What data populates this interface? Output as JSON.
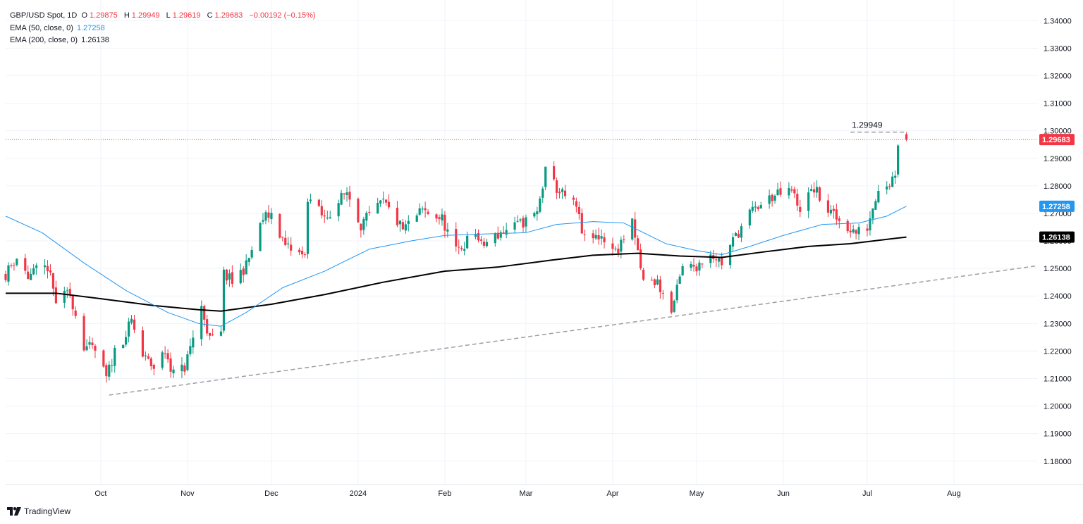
{
  "legend": {
    "symbol": "GBP/USD Spot, 1D",
    "open_label": "O",
    "open": "1.29875",
    "high_label": "H",
    "high": "1.29949",
    "low_label": "L",
    "low": "1.29619",
    "close_label": "C",
    "close": "1.29683",
    "change": "−0.00192 (−0.15%)",
    "ema50_label": "EMA (50, close, 0)",
    "ema50_value": "1.27258",
    "ema200_label": "EMA (200, close, 0)",
    "ema200_value": "1.26138"
  },
  "brand": {
    "name": "TradingView",
    "logo_icon": "tradingview-logo-icon"
  },
  "colors": {
    "up": "#089981",
    "down": "#f23645",
    "ema50": "#2196f3",
    "ema200": "#000000",
    "price_line": "#f23645",
    "trend": "#9e9e9e",
    "grid": "#f0f3fa"
  },
  "chart_data": {
    "type": "candlestick",
    "title": "GBP/USD Spot, 1D",
    "ylim": [
      1.1715,
      1.3475
    ],
    "y_ticks": [
      "1.34000",
      "1.33000",
      "1.32000",
      "1.31000",
      "1.30000",
      "1.29000",
      "1.28000",
      "1.27000",
      "1.26000",
      "1.25000",
      "1.24000",
      "1.23000",
      "1.22000",
      "1.21000",
      "1.20000",
      "1.19000",
      "1.18000"
    ],
    "x_labels": [
      {
        "label": "Oct",
        "date": "2023-10-01"
      },
      {
        "label": "Nov",
        "date": "2023-11-01"
      },
      {
        "label": "Dec",
        "date": "2023-12-01"
      },
      {
        "label": "2024",
        "date": "2024-01-01"
      },
      {
        "label": "Feb",
        "date": "2024-02-01"
      },
      {
        "label": "Mar",
        "date": "2024-03-01"
      },
      {
        "label": "Apr",
        "date": "2024-04-01"
      },
      {
        "label": "May",
        "date": "2024-05-01"
      },
      {
        "label": "Jun",
        "date": "2024-06-01"
      },
      {
        "label": "Jul",
        "date": "2024-07-01"
      },
      {
        "label": "Aug",
        "date": "2024-08-01"
      }
    ],
    "xlim": [
      "2023-08-28",
      "2024-08-31"
    ],
    "price_path": [
      [
        "2023-08-28",
        1.248
      ],
      [
        "2023-09-01",
        1.254
      ],
      [
        "2023-09-05",
        1.247
      ],
      [
        "2023-09-08",
        1.249
      ],
      [
        "2023-09-12",
        1.2505
      ],
      [
        "2023-09-15",
        1.238
      ],
      [
        "2023-09-20",
        1.241
      ],
      [
        "2023-09-25",
        1.222
      ],
      [
        "2023-09-29",
        1.22
      ],
      [
        "2023-10-03",
        1.21
      ],
      [
        "2023-10-06",
        1.22
      ],
      [
        "2023-10-10",
        1.226
      ],
      [
        "2023-10-12",
        1.231
      ],
      [
        "2023-10-16",
        1.218
      ],
      [
        "2023-10-20",
        1.214
      ],
      [
        "2023-10-24",
        1.22
      ],
      [
        "2023-10-27",
        1.212
      ],
      [
        "2023-10-31",
        1.214
      ],
      [
        "2023-11-06",
        1.236
      ],
      [
        "2023-11-09",
        1.224
      ],
      [
        "2023-11-13",
        1.226
      ],
      [
        "2023-11-14",
        1.248
      ],
      [
        "2023-11-17",
        1.245
      ],
      [
        "2023-11-22",
        1.251
      ],
      [
        "2023-11-28",
        1.268
      ],
      [
        "2023-12-01",
        1.27
      ],
      [
        "2023-12-06",
        1.258
      ],
      [
        "2023-12-13",
        1.254
      ],
      [
        "2023-12-14",
        1.276
      ],
      [
        "2023-12-20",
        1.268
      ],
      [
        "2023-12-28",
        1.278
      ],
      [
        "2024-01-02",
        1.266
      ],
      [
        "2024-01-10",
        1.274
      ],
      [
        "2024-01-17",
        1.264
      ],
      [
        "2024-01-24",
        1.271
      ],
      [
        "2024-01-31",
        1.268
      ],
      [
        "2024-02-05",
        1.256
      ],
      [
        "2024-02-12",
        1.263
      ],
      [
        "2024-02-14",
        1.258
      ],
      [
        "2024-02-21",
        1.263
      ],
      [
        "2024-02-28",
        1.266
      ],
      [
        "2024-03-05",
        1.27
      ],
      [
        "2024-03-08",
        1.285
      ],
      [
        "2024-03-12",
        1.279
      ],
      [
        "2024-03-19",
        1.272
      ],
      [
        "2024-03-22",
        1.26
      ],
      [
        "2024-03-28",
        1.262
      ],
      [
        "2024-04-02",
        1.256
      ],
      [
        "2024-04-08",
        1.266
      ],
      [
        "2024-04-12",
        1.245
      ],
      [
        "2024-04-17",
        1.245
      ],
      [
        "2024-04-22",
        1.234
      ],
      [
        "2024-04-26",
        1.25
      ],
      [
        "2024-05-01",
        1.251
      ],
      [
        "2024-05-06",
        1.256
      ],
      [
        "2024-05-10",
        1.252
      ],
      [
        "2024-05-14",
        1.26
      ],
      [
        "2024-05-20",
        1.27
      ],
      [
        "2024-05-28",
        1.276
      ],
      [
        "2024-06-04",
        1.278
      ],
      [
        "2024-06-07",
        1.272
      ],
      [
        "2024-06-12",
        1.279
      ],
      [
        "2024-06-17",
        1.271
      ],
      [
        "2024-06-20",
        1.268
      ],
      [
        "2024-06-27",
        1.263
      ],
      [
        "2024-07-01",
        1.265
      ],
      [
        "2024-07-05",
        1.28
      ],
      [
        "2024-07-09",
        1.281
      ],
      [
        "2024-07-11",
        1.285
      ],
      [
        "2024-07-12",
        1.296
      ],
      [
        "2024-07-15",
        1.2968
      ]
    ],
    "ema50": [
      [
        "2023-08-28",
        1.269
      ],
      [
        "2023-09-10",
        1.263
      ],
      [
        "2023-09-25",
        1.252
      ],
      [
        "2023-10-10",
        1.242
      ],
      [
        "2023-10-25",
        1.234
      ],
      [
        "2023-11-05",
        1.23
      ],
      [
        "2023-11-13",
        1.229
      ],
      [
        "2023-11-22",
        1.234
      ],
      [
        "2023-12-05",
        1.243
      ],
      [
        "2023-12-20",
        1.249
      ],
      [
        "2024-01-05",
        1.257
      ],
      [
        "2024-01-20",
        1.26
      ],
      [
        "2024-02-01",
        1.262
      ],
      [
        "2024-02-15",
        1.2625
      ],
      [
        "2024-03-01",
        1.263
      ],
      [
        "2024-03-12",
        1.266
      ],
      [
        "2024-03-25",
        1.267
      ],
      [
        "2024-04-05",
        1.2665
      ],
      [
        "2024-04-20",
        1.259
      ],
      [
        "2024-05-01",
        1.2565
      ],
      [
        "2024-05-10",
        1.255
      ],
      [
        "2024-05-20",
        1.258
      ],
      [
        "2024-06-01",
        1.262
      ],
      [
        "2024-06-15",
        1.266
      ],
      [
        "2024-06-28",
        1.2665
      ],
      [
        "2024-07-08",
        1.269
      ],
      [
        "2024-07-15",
        1.2726
      ]
    ],
    "ema200": [
      [
        "2023-08-28",
        1.241
      ],
      [
        "2023-09-15",
        1.241
      ],
      [
        "2023-10-01",
        1.239
      ],
      [
        "2023-10-20",
        1.2365
      ],
      [
        "2023-11-05",
        1.235
      ],
      [
        "2023-11-13",
        1.2345
      ],
      [
        "2023-12-01",
        1.237
      ],
      [
        "2023-12-20",
        1.2405
      ],
      [
        "2024-01-10",
        1.245
      ],
      [
        "2024-02-01",
        1.249
      ],
      [
        "2024-02-20",
        1.2505
      ],
      [
        "2024-03-10",
        1.253
      ],
      [
        "2024-03-25",
        1.2548
      ],
      [
        "2024-04-10",
        1.2555
      ],
      [
        "2024-04-25",
        1.2545
      ],
      [
        "2024-05-10",
        1.254
      ],
      [
        "2024-05-25",
        1.256
      ],
      [
        "2024-06-10",
        1.258
      ],
      [
        "2024-06-25",
        1.259
      ],
      [
        "2024-07-15",
        1.2614
      ]
    ],
    "trendline": [
      [
        "2023-10-04",
        1.204
      ],
      [
        "2024-08-31",
        1.251
      ]
    ],
    "trendline_lower_anchor": [
      "2024-04-22",
      1.23
    ],
    "high_marker": {
      "label": "1.29949",
      "value": 1.29949,
      "from": "2024-06-25",
      "to": "2024-07-15"
    },
    "last_price": {
      "label": "1.29683",
      "value": 1.29683
    },
    "ema50_tag": {
      "label": "1.27258",
      "value": 1.27258
    },
    "ema200_tag": {
      "label": "1.26138",
      "value": 1.26138
    }
  }
}
